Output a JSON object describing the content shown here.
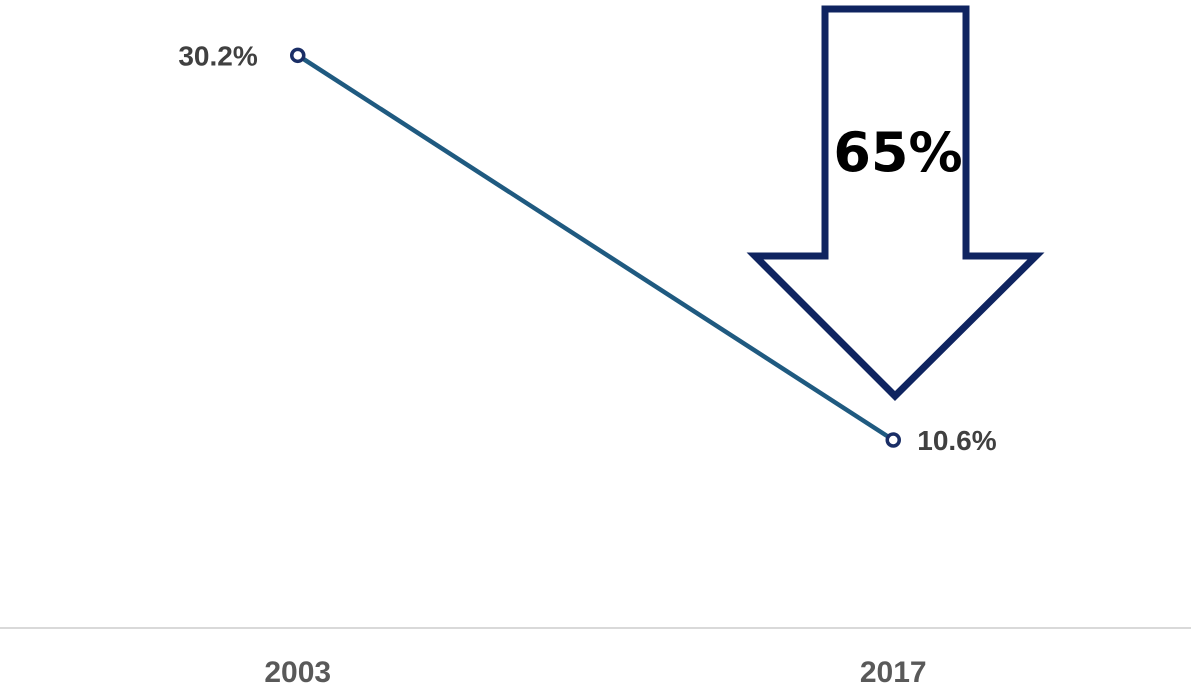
{
  "chart_data": {
    "type": "line",
    "categories": [
      "2003",
      "2017"
    ],
    "series": [
      {
        "values": [
          30.2,
          10.6
        ],
        "data_labels": [
          "30.2%",
          "10.6%"
        ]
      }
    ],
    "title": "",
    "xlabel": "",
    "ylabel": "",
    "ylim": [
      0,
      32
    ],
    "grid": false,
    "legend": "none",
    "annotation": {
      "shape": "down-arrow",
      "label": "65%"
    }
  },
  "colors": {
    "line": "#1f5a80",
    "marker": "#1a2e66",
    "arrow": "#0f2460",
    "data_label": "#404040",
    "tick_label": "#595959",
    "axis": "#d9d9d9",
    "arrow_label": "#000000"
  }
}
